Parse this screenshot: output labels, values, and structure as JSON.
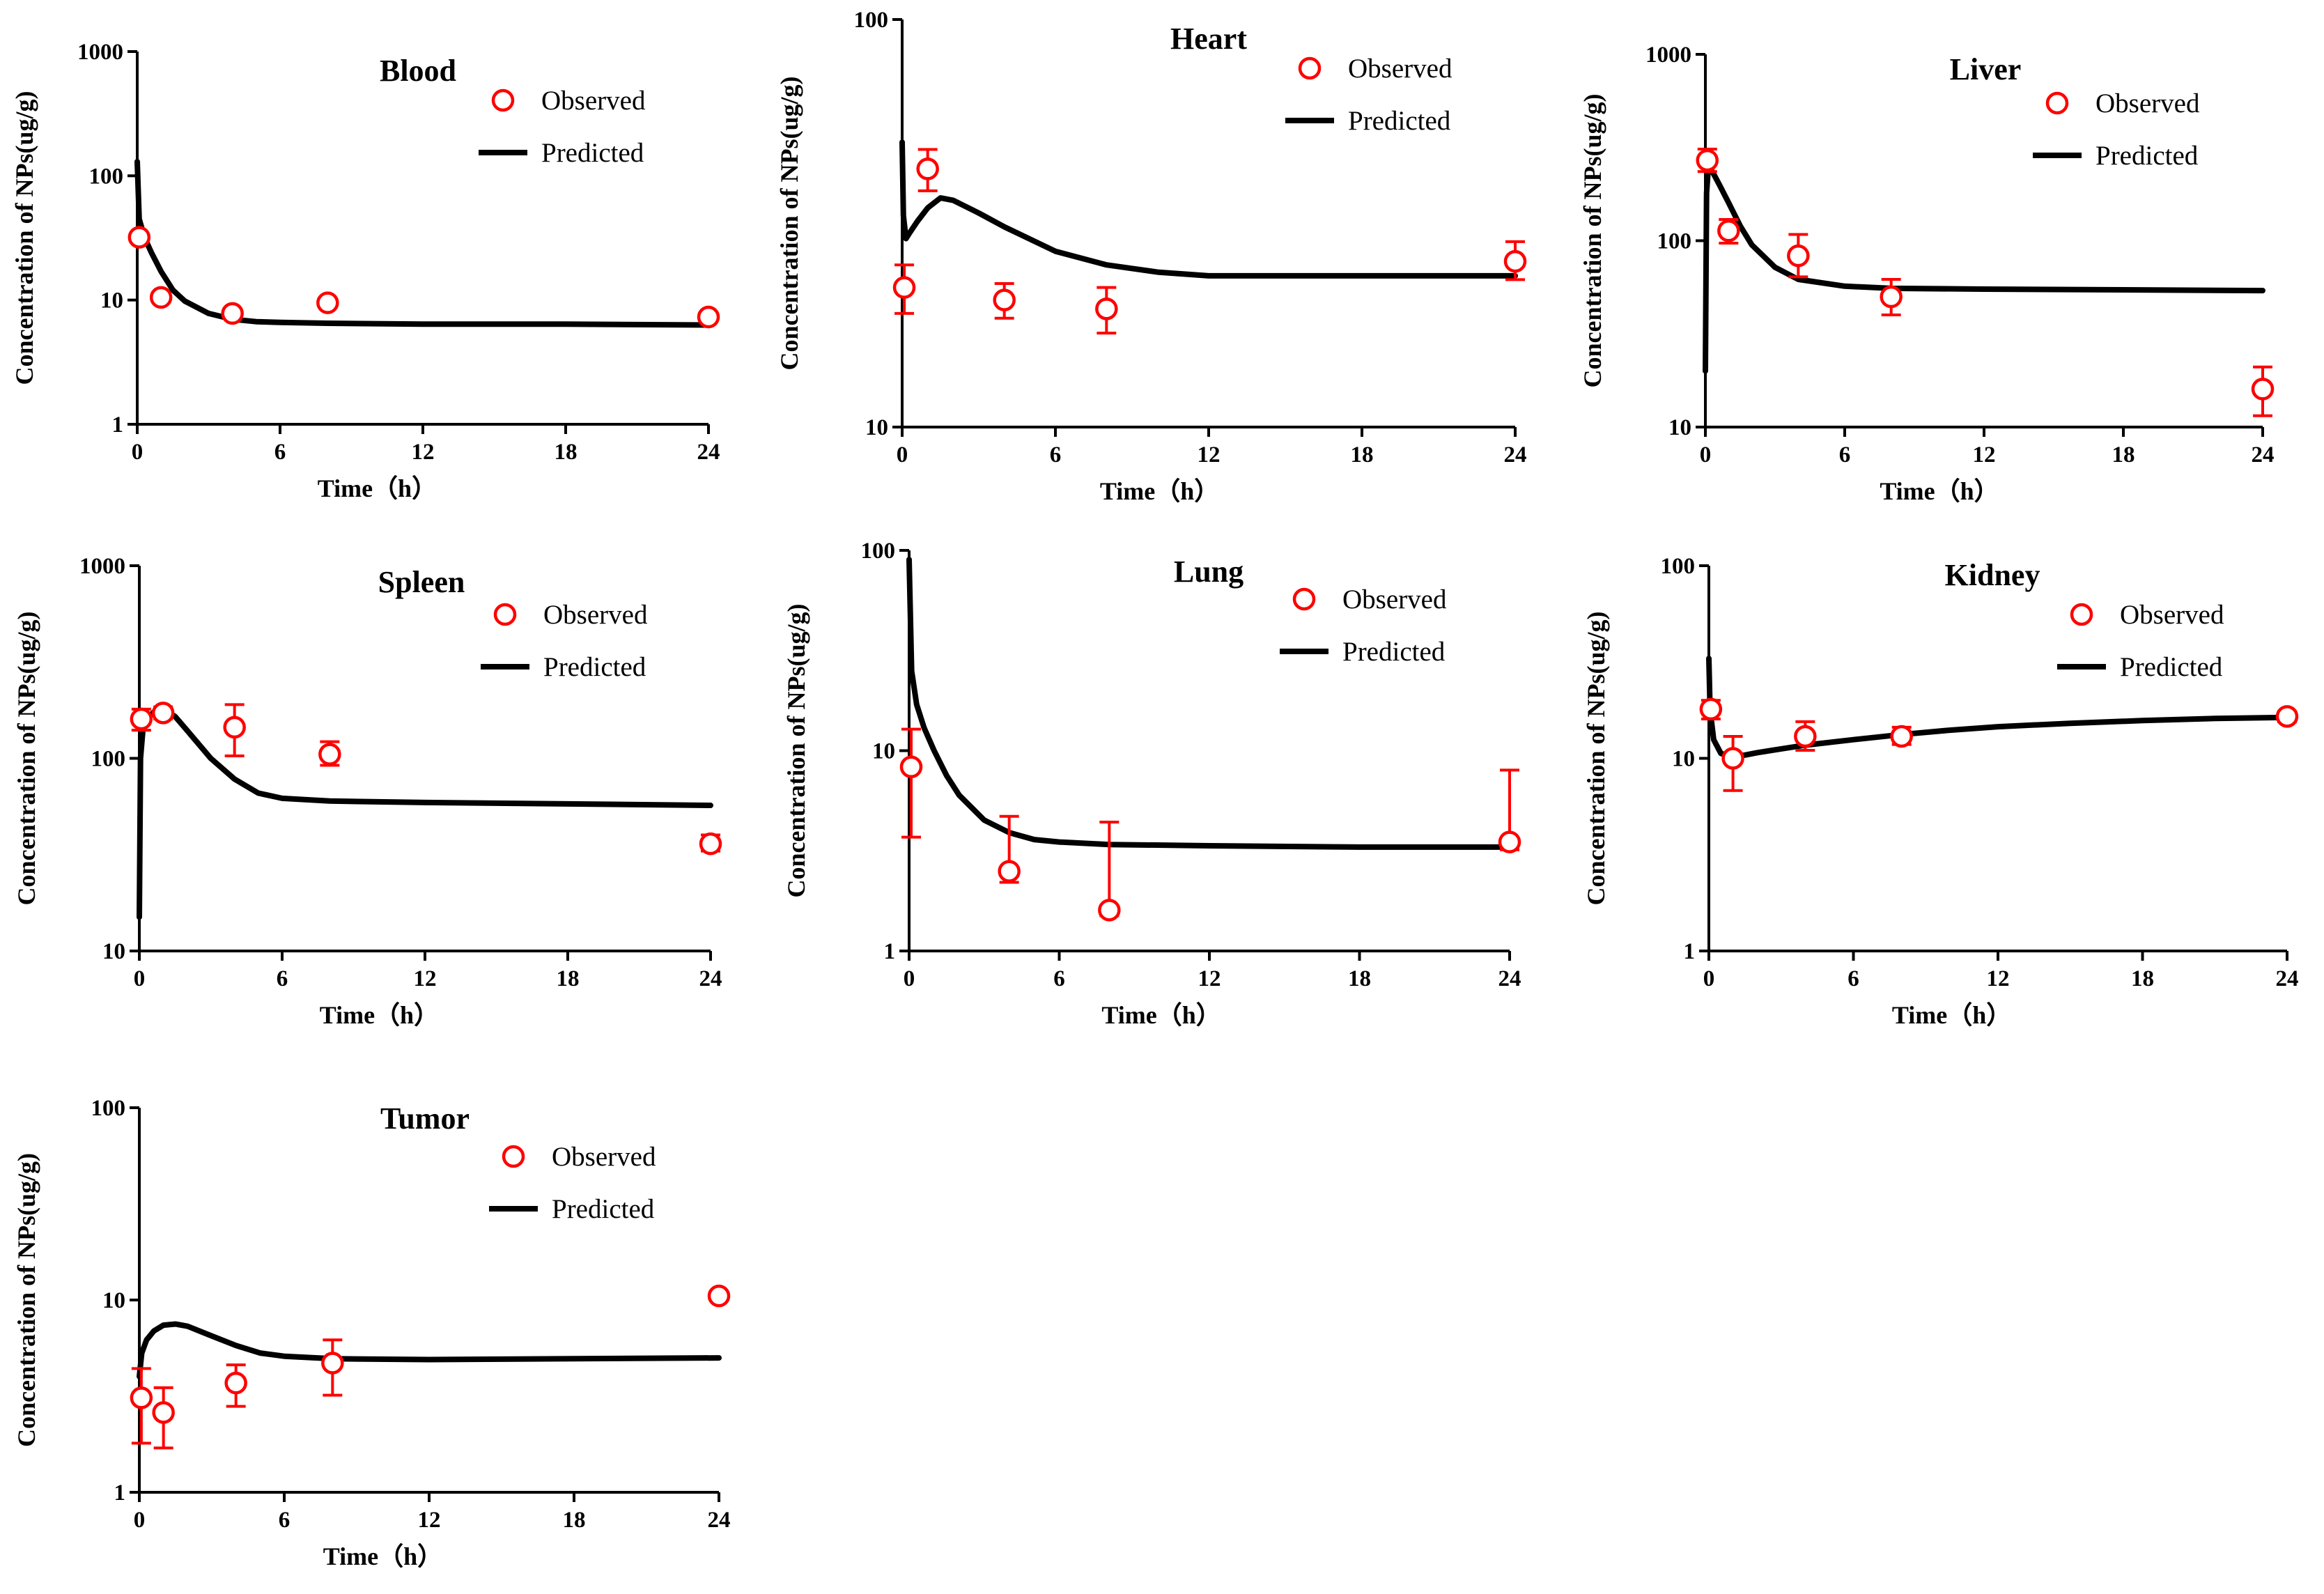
{
  "figure": {
    "xlabel": "Time（h）",
    "ylabel": "Concentration of NPs(ug/g)",
    "legend": {
      "observed": "Observed",
      "predicted": "Predicted"
    },
    "colors": {
      "observed": "#ff0000",
      "predicted": "#000000",
      "axis": "#000000"
    }
  },
  "chart_data": [
    {
      "type": "line",
      "title": "Blood",
      "xlim": [
        0,
        24
      ],
      "ylim": [
        1,
        1000
      ],
      "yscale": "log",
      "xticks": [
        0,
        6,
        12,
        18,
        24
      ],
      "yticks": [
        1,
        10,
        100,
        1000
      ],
      "legend_position": "top-right",
      "observed": [
        {
          "x": 0.083,
          "y": 32
        },
        {
          "x": 1,
          "y": 10.5
        },
        {
          "x": 4,
          "y": 7.8
        },
        {
          "x": 8,
          "y": 9.5
        },
        {
          "x": 24,
          "y": 7.3
        }
      ],
      "predicted": {
        "x": [
          0,
          0.083,
          0.3,
          0.6,
          1,
          1.5,
          2,
          3,
          4,
          5,
          6,
          8,
          12,
          18,
          24
        ],
        "y": [
          130,
          45,
          32,
          24,
          17,
          12,
          9.8,
          7.8,
          7.0,
          6.7,
          6.6,
          6.5,
          6.4,
          6.4,
          6.3
        ]
      }
    },
    {
      "type": "line",
      "title": "Heart",
      "xlim": [
        0,
        24
      ],
      "ylim": [
        10,
        100
      ],
      "yscale": "log",
      "xticks": [
        0,
        6,
        12,
        18,
        24
      ],
      "yticks": [
        10,
        100
      ],
      "legend_position": "top-right",
      "observed": [
        {
          "x": 0.083,
          "y": 22,
          "lo": 19,
          "hi": 25
        },
        {
          "x": 1,
          "y": 43,
          "lo": 38,
          "hi": 48
        },
        {
          "x": 4,
          "y": 20.5,
          "lo": 18.5,
          "hi": 22.5
        },
        {
          "x": 8,
          "y": 19.5,
          "lo": 17,
          "hi": 22
        },
        {
          "x": 24,
          "y": 25.5,
          "lo": 23,
          "hi": 28.5
        }
      ],
      "predicted": {
        "x": [
          0,
          0.05,
          0.15,
          0.3,
          0.6,
          1,
          1.5,
          2,
          3,
          4,
          6,
          8,
          10,
          12,
          18,
          24
        ],
        "y": [
          50,
          33,
          29,
          30,
          32,
          34.5,
          36.5,
          36,
          33.5,
          31,
          27,
          25,
          24,
          23.5,
          23.5,
          23.5
        ]
      }
    },
    {
      "type": "line",
      "title": "Liver",
      "xlim": [
        0,
        24
      ],
      "ylim": [
        10,
        1000
      ],
      "yscale": "log",
      "xticks": [
        0,
        6,
        12,
        18,
        24
      ],
      "yticks": [
        10,
        100,
        1000
      ],
      "legend_position": "top-right",
      "observed": [
        {
          "x": 0.083,
          "y": 270,
          "lo": 235,
          "hi": 310
        },
        {
          "x": 1,
          "y": 113,
          "lo": 97,
          "hi": 130
        },
        {
          "x": 4,
          "y": 83,
          "lo": 64,
          "hi": 108
        },
        {
          "x": 8,
          "y": 50,
          "lo": 40,
          "hi": 62
        },
        {
          "x": 24,
          "y": 16,
          "lo": 11.5,
          "hi": 21
        }
      ],
      "predicted": {
        "x": [
          0,
          0.05,
          0.12,
          0.3,
          0.6,
          1,
          1.5,
          2,
          3,
          4,
          6,
          8,
          12,
          18,
          24
        ],
        "y": [
          20,
          180,
          240,
          235,
          200,
          160,
          120,
          95,
          72,
          62,
          57,
          55.5,
          55,
          54.5,
          54
        ]
      }
    },
    {
      "type": "line",
      "title": "Spleen",
      "xlim": [
        0,
        24
      ],
      "ylim": [
        10,
        1000
      ],
      "yscale": "log",
      "xticks": [
        0,
        6,
        12,
        18,
        24
      ],
      "yticks": [
        10,
        100,
        1000
      ],
      "legend_position": "top-right",
      "observed": [
        {
          "x": 0.083,
          "y": 160,
          "lo": 140,
          "hi": 180
        },
        {
          "x": 1,
          "y": 172,
          "lo": 160,
          "hi": 185
        },
        {
          "x": 4,
          "y": 145,
          "lo": 103,
          "hi": 190
        },
        {
          "x": 8,
          "y": 105,
          "lo": 92,
          "hi": 122
        },
        {
          "x": 24,
          "y": 36,
          "lo": 33,
          "hi": 40
        }
      ],
      "predicted": {
        "x": [
          0,
          0.05,
          0.15,
          0.4,
          0.7,
          1,
          1.5,
          2,
          3,
          4,
          5,
          6,
          8,
          12,
          18,
          24
        ],
        "y": [
          15,
          100,
          140,
          165,
          178,
          180,
          165,
          140,
          100,
          78,
          66,
          62,
          60,
          59,
          58,
          57
        ]
      }
    },
    {
      "type": "line",
      "title": "Lung",
      "xlim": [
        0,
        24
      ],
      "ylim": [
        1,
        100
      ],
      "yscale": "log",
      "xticks": [
        0,
        6,
        12,
        18,
        24
      ],
      "yticks": [
        1,
        10,
        100
      ],
      "legend_position": "top-right",
      "observed": [
        {
          "x": 0.083,
          "y": 8.3,
          "lo": 3.7,
          "hi": 12.8
        },
        {
          "x": 4,
          "y": 2.5,
          "lo": 2.2,
          "hi": 4.7
        },
        {
          "x": 8,
          "y": 1.6,
          "lo": 1.5,
          "hi": 4.4
        },
        {
          "x": 24,
          "y": 3.5,
          "lo": 3.2,
          "hi": 8
        }
      ],
      "predicted": {
        "x": [
          0,
          0.1,
          0.3,
          0.6,
          1,
          1.5,
          2,
          3,
          4,
          5,
          6,
          8,
          12,
          18,
          24
        ],
        "y": [
          90,
          25,
          17,
          13,
          10,
          7.5,
          6,
          4.5,
          3.9,
          3.6,
          3.5,
          3.4,
          3.35,
          3.3,
          3.3
        ]
      }
    },
    {
      "type": "line",
      "title": "Kidney",
      "xlim": [
        0,
        24
      ],
      "ylim": [
        1,
        100
      ],
      "yscale": "log",
      "xticks": [
        0,
        6,
        12,
        18,
        24
      ],
      "yticks": [
        1,
        10,
        100
      ],
      "legend_position": "top-right",
      "observed": [
        {
          "x": 0.083,
          "y": 18,
          "lo": 16,
          "hi": 20
        },
        {
          "x": 1,
          "y": 10,
          "lo": 6.8,
          "hi": 13
        },
        {
          "x": 4,
          "y": 13,
          "lo": 11,
          "hi": 15.5
        },
        {
          "x": 8,
          "y": 13,
          "lo": 11.8,
          "hi": 14.5
        },
        {
          "x": 24,
          "y": 16.5,
          "lo": 15.5,
          "hi": 17.5
        }
      ],
      "predicted": {
        "x": [
          0,
          0.05,
          0.2,
          0.5,
          1,
          1.5,
          2,
          3,
          4,
          6,
          8,
          10,
          12,
          15,
          18,
          21,
          24
        ],
        "y": [
          33,
          18,
          12.5,
          10.6,
          10.2,
          10.4,
          10.7,
          11.2,
          11.7,
          12.5,
          13.3,
          14,
          14.6,
          15.2,
          15.7,
          16.1,
          16.3
        ]
      }
    },
    {
      "type": "line",
      "title": "Tumor",
      "xlim": [
        0,
        24
      ],
      "ylim": [
        1,
        100
      ],
      "yscale": "log",
      "xticks": [
        0,
        6,
        12,
        18,
        24
      ],
      "yticks": [
        1,
        10,
        100
      ],
      "legend_position": "top-right",
      "observed": [
        {
          "x": 0.083,
          "y": 3.1,
          "lo": 1.8,
          "hi": 4.4
        },
        {
          "x": 1,
          "y": 2.6,
          "lo": 1.7,
          "hi": 3.5
        },
        {
          "x": 4,
          "y": 3.7,
          "lo": 2.8,
          "hi": 4.6
        },
        {
          "x": 8,
          "y": 4.7,
          "lo": 3.2,
          "hi": 6.2
        },
        {
          "x": 24,
          "y": 10.5
        }
      ],
      "predicted": {
        "x": [
          0,
          0.1,
          0.3,
          0.6,
          1,
          1.5,
          2,
          3,
          4,
          5,
          6,
          8,
          12,
          18,
          24
        ],
        "y": [
          4,
          5.3,
          6.2,
          6.9,
          7.4,
          7.5,
          7.3,
          6.5,
          5.8,
          5.3,
          5.1,
          4.95,
          4.9,
          4.95,
          5.0
        ]
      }
    }
  ]
}
